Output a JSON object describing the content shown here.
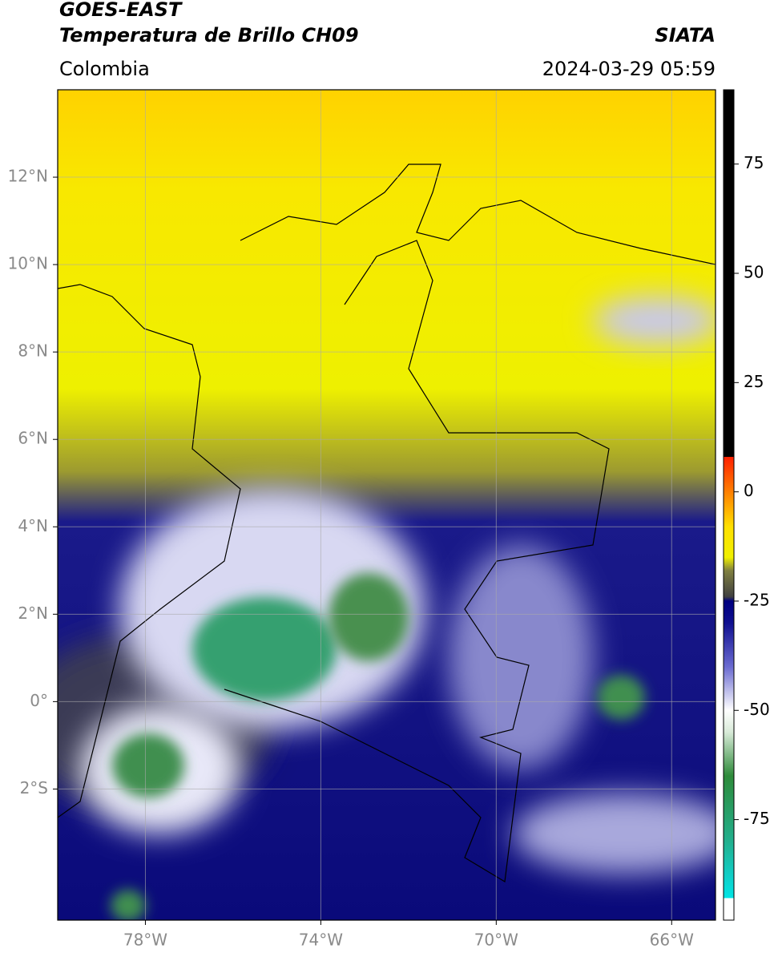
{
  "header": {
    "satellite": "GOES-EAST",
    "product": "Temperatura de Brillo CH09",
    "agency": "SIATA",
    "region": "Colombia",
    "datetime": "2024-03-29 05:59"
  },
  "map": {
    "xlim": [
      -80,
      -65
    ],
    "ylim": [
      -5,
      14
    ],
    "xticks": [
      {
        "value": -78,
        "label": "78°W"
      },
      {
        "value": -74,
        "label": "74°W"
      },
      {
        "value": -70,
        "label": "70°W"
      },
      {
        "value": -66,
        "label": "66°W"
      }
    ],
    "yticks": [
      {
        "value": -2,
        "label": "2°S"
      },
      {
        "value": 0,
        "label": "0°"
      },
      {
        "value": 2,
        "label": "2°N"
      },
      {
        "value": 4,
        "label": "4°N"
      },
      {
        "value": 6,
        "label": "6°N"
      },
      {
        "value": 8,
        "label": "8°N"
      },
      {
        "value": 10,
        "label": "10°N"
      },
      {
        "value": 12,
        "label": "12°N"
      }
    ],
    "grid": true
  },
  "colorbar": {
    "clim": [
      -98,
      92
    ],
    "ticks": [
      -75,
      -50,
      -25,
      0,
      25,
      50,
      75
    ],
    "colormap": [
      {
        "value": -98,
        "color": "#ffffff"
      },
      {
        "value": -93,
        "color": "#ffffff"
      },
      {
        "value": -93,
        "color": "#00e5e5"
      },
      {
        "value": -88,
        "color": "#10cfc8"
      },
      {
        "value": -80,
        "color": "#22b08e"
      },
      {
        "value": -65,
        "color": "#2e8b3a"
      },
      {
        "value": -55,
        "color": "#d8ead8"
      },
      {
        "value": -50,
        "color": "#ffffff"
      },
      {
        "value": -40,
        "color": "#6a6ad0"
      },
      {
        "value": -30,
        "color": "#101090"
      },
      {
        "value": -25,
        "color": "#000080"
      },
      {
        "value": -24,
        "color": "#404040"
      },
      {
        "value": -18,
        "color": "#808040"
      },
      {
        "value": -15,
        "color": "#f0f000"
      },
      {
        "value": -8,
        "color": "#ffe000"
      },
      {
        "value": 0,
        "color": "#ff8000"
      },
      {
        "value": 8,
        "color": "#ff2000"
      },
      {
        "value": 8,
        "color": "#000000"
      },
      {
        "value": 92,
        "color": "#000000"
      }
    ]
  }
}
